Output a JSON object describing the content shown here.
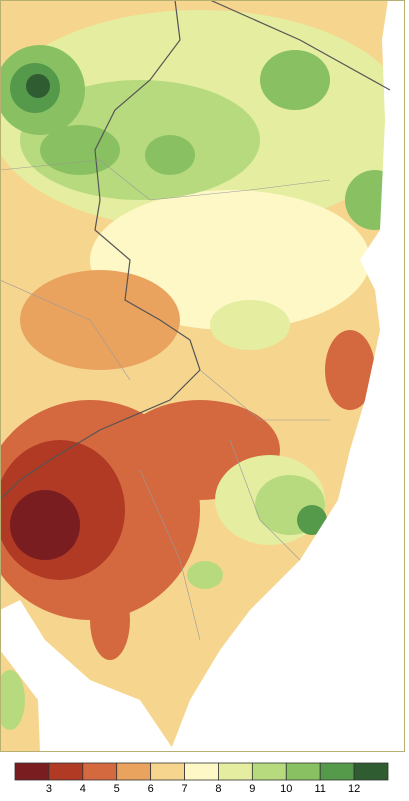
{
  "legend": {
    "colors": [
      "#7a1d20",
      "#b03a24",
      "#d4693f",
      "#e9a35f",
      "#f6d68e",
      "#fdf8c6",
      "#e4eda0",
      "#b8da7e",
      "#88c062",
      "#55994a",
      "#2f5d31"
    ],
    "ticks": [
      3,
      4,
      5,
      6,
      7,
      8,
      9,
      10,
      11,
      12
    ]
  }
}
